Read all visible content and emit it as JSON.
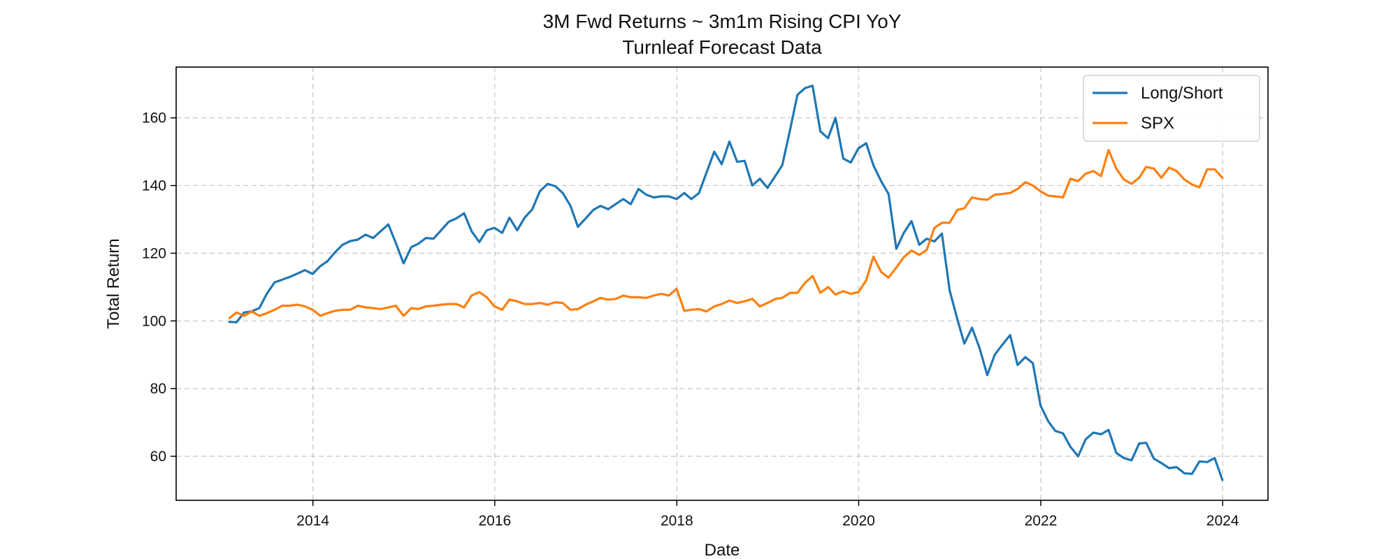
{
  "chart_data": {
    "type": "line",
    "title": "3M Fwd Returns ~ 3m1m Rising CPI YoY",
    "subtitle": "Turnleaf Forecast Data",
    "xlabel": "Date",
    "ylabel": "Total Return",
    "xlim": [
      "2012-07-01",
      "2024-07-01"
    ],
    "ylim": [
      47,
      175
    ],
    "xticks": [
      "2014",
      "2016",
      "2018",
      "2020",
      "2022",
      "2024"
    ],
    "yticks": [
      60,
      80,
      100,
      120,
      140,
      160
    ],
    "grid": true,
    "legend": "top-right",
    "x": [
      "2013-01-31",
      "2013-02-28",
      "2013-03-31",
      "2013-04-30",
      "2013-05-31",
      "2013-06-30",
      "2013-07-31",
      "2013-08-31",
      "2013-09-30",
      "2013-10-31",
      "2013-11-30",
      "2013-12-31",
      "2014-01-31",
      "2014-02-28",
      "2014-03-31",
      "2014-04-30",
      "2014-05-31",
      "2014-06-30",
      "2014-07-31",
      "2014-08-31",
      "2014-09-30",
      "2014-10-31",
      "2014-11-30",
      "2014-12-31",
      "2015-01-31",
      "2015-02-28",
      "2015-03-31",
      "2015-04-30",
      "2015-05-31",
      "2015-06-30",
      "2015-07-31",
      "2015-08-31",
      "2015-09-30",
      "2015-10-31",
      "2015-11-30",
      "2015-12-31",
      "2016-01-31",
      "2016-02-29",
      "2016-03-31",
      "2016-04-30",
      "2016-05-31",
      "2016-06-30",
      "2016-07-31",
      "2016-08-31",
      "2016-09-30",
      "2016-10-31",
      "2016-11-30",
      "2016-12-31",
      "2017-01-31",
      "2017-02-28",
      "2017-03-31",
      "2017-04-30",
      "2017-05-31",
      "2017-06-30",
      "2017-07-31",
      "2017-08-31",
      "2017-09-30",
      "2017-10-31",
      "2017-11-30",
      "2017-12-31",
      "2018-01-31",
      "2018-02-28",
      "2018-03-31",
      "2018-04-30",
      "2018-05-31",
      "2018-06-30",
      "2018-07-31",
      "2018-08-31",
      "2018-09-30",
      "2018-10-31",
      "2018-11-30",
      "2018-12-31",
      "2019-01-31",
      "2019-02-28",
      "2019-03-31",
      "2019-04-30",
      "2019-05-31",
      "2019-06-30",
      "2019-07-31",
      "2019-08-31",
      "2019-09-30",
      "2019-10-31",
      "2019-11-30",
      "2019-12-31",
      "2020-01-31",
      "2020-02-29",
      "2020-03-31",
      "2020-04-30",
      "2020-05-31",
      "2020-06-30",
      "2020-07-31",
      "2020-08-31",
      "2020-09-30",
      "2020-10-31",
      "2020-11-30",
      "2020-12-31",
      "2021-01-31",
      "2021-02-28",
      "2021-03-31",
      "2021-04-30",
      "2021-05-31",
      "2021-06-30",
      "2021-07-31",
      "2021-08-31",
      "2021-09-30",
      "2021-10-31",
      "2021-11-30",
      "2021-12-31",
      "2022-01-31",
      "2022-02-28",
      "2022-03-31",
      "2022-04-30",
      "2022-05-31",
      "2022-06-30",
      "2022-07-31",
      "2022-08-31",
      "2022-09-30",
      "2022-10-31",
      "2022-11-30",
      "2022-12-31",
      "2023-01-31",
      "2023-02-28",
      "2023-03-31",
      "2023-04-30",
      "2023-05-31",
      "2023-06-30",
      "2023-07-31",
      "2023-08-31",
      "2023-09-30",
      "2023-10-31",
      "2023-11-30",
      "2023-12-31"
    ],
    "series": [
      {
        "name": "Long/Short",
        "color": "#1f77b4",
        "values": [
          99.7,
          99.6,
          102.5,
          102.8,
          103.8,
          108.0,
          111.4,
          112.2,
          113.0,
          114.0,
          115.0,
          113.9,
          116.2,
          117.6,
          120.3,
          122.5,
          123.6,
          124.0,
          125.5,
          124.5,
          126.5,
          128.5,
          123.0,
          117.0,
          121.8,
          122.8,
          124.5,
          124.3,
          126.8,
          129.3,
          130.3,
          131.8,
          126.5,
          123.3,
          126.8,
          127.5,
          126.0,
          130.5,
          126.8,
          130.5,
          133.0,
          138.3,
          140.5,
          139.8,
          137.8,
          134.0,
          127.8,
          130.3,
          132.8,
          134.0,
          133.0,
          134.5,
          136.0,
          134.5,
          139.0,
          137.3,
          136.5,
          136.8,
          136.8,
          136.0,
          137.8,
          136.0,
          137.8,
          143.8,
          150.0,
          146.3,
          153.0,
          147.0,
          147.3,
          140.0,
          142.0,
          139.3,
          142.8,
          146.0,
          156.3,
          166.8,
          168.8,
          169.5,
          156.0,
          154.0,
          160.0,
          148.0,
          146.8,
          151.0,
          152.5,
          146.0,
          141.3,
          137.5,
          121.3,
          126.0,
          129.5,
          122.5,
          124.3,
          123.5,
          125.8,
          109.0,
          100.5,
          93.3,
          98.0,
          92.0,
          84.0,
          90.0,
          93.0,
          95.8,
          87.0,
          89.3,
          87.5,
          75.0,
          70.3,
          67.5,
          66.8,
          62.8,
          60.0,
          65.0,
          67.0,
          66.5,
          67.8,
          61.0,
          59.5,
          58.8,
          63.8,
          64.0,
          59.3,
          58.0,
          56.5,
          56.8,
          55.0,
          54.8,
          58.5,
          58.3,
          59.5,
          53.0
        ]
      },
      {
        "name": "SPX",
        "color": "#ff7f0e",
        "values": [
          100.8,
          102.5,
          101.5,
          102.8,
          101.5,
          102.3,
          103.3,
          104.5,
          104.5,
          104.8,
          104.3,
          103.3,
          101.5,
          102.3,
          103.0,
          103.3,
          103.3,
          104.5,
          104.0,
          103.8,
          103.5,
          104.0,
          104.5,
          101.5,
          103.8,
          103.5,
          104.3,
          104.5,
          104.8,
          105.0,
          105.0,
          104.0,
          107.5,
          108.5,
          107.0,
          104.3,
          103.3,
          106.3,
          105.8,
          105.0,
          105.0,
          105.3,
          104.8,
          105.5,
          105.3,
          103.3,
          103.5,
          104.8,
          105.8,
          106.8,
          106.3,
          106.5,
          107.5,
          107.0,
          107.0,
          106.8,
          107.5,
          108.0,
          107.5,
          109.5,
          103.0,
          103.3,
          103.5,
          102.8,
          104.3,
          105.0,
          106.0,
          105.3,
          105.8,
          106.5,
          104.3,
          105.3,
          106.5,
          106.8,
          108.3,
          108.3,
          111.3,
          113.3,
          108.3,
          110.0,
          107.8,
          108.8,
          108.0,
          108.5,
          112.0,
          119.0,
          114.5,
          112.8,
          115.8,
          118.8,
          120.8,
          119.5,
          121.0,
          127.5,
          129.0,
          129.0,
          132.8,
          133.3,
          136.5,
          136.0,
          135.8,
          137.3,
          137.5,
          137.8,
          139.0,
          141.0,
          140.0,
          138.3,
          137.0,
          136.8,
          136.5,
          142.0,
          141.3,
          143.5,
          144.3,
          142.8,
          150.5,
          145.0,
          141.8,
          140.5,
          142.3,
          145.5,
          145.0,
          142.3,
          145.3,
          144.3,
          141.8,
          140.3,
          139.5,
          144.8,
          144.8,
          142.3
        ]
      }
    ]
  }
}
